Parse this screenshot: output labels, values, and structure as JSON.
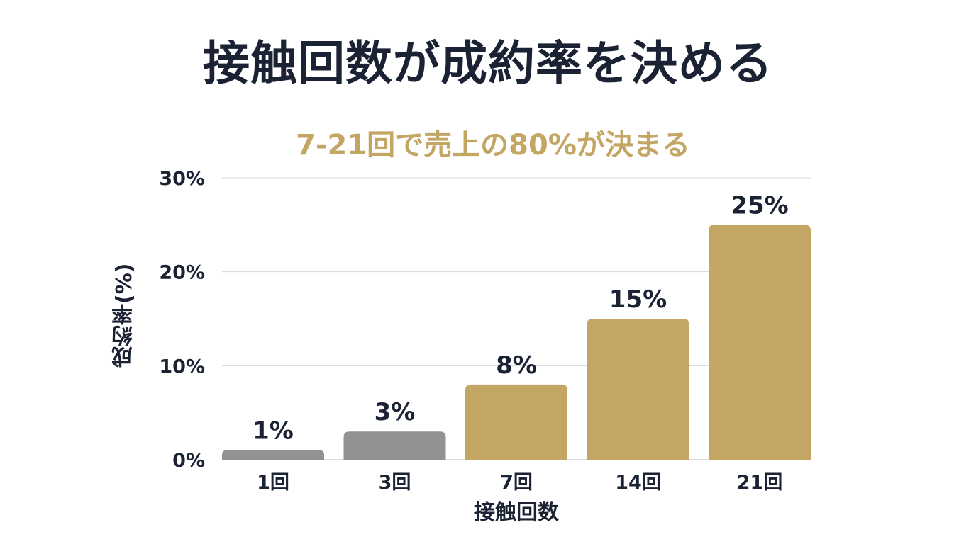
{
  "title": "接触回数が成約率を決める",
  "subtitle": "7-21回で売上の80%が決まる",
  "colors": {
    "highlight": "#c4a664",
    "muted": "#929292",
    "text": "#1a2233",
    "grid": "#d4d7dc"
  },
  "chart_data": {
    "type": "bar",
    "categories": [
      "1回",
      "3回",
      "7回",
      "14回",
      "21回"
    ],
    "values": [
      1,
      3,
      8,
      15,
      25
    ],
    "data_labels": [
      "1%",
      "3%",
      "8%",
      "15%",
      "25%"
    ],
    "bar_colors": [
      "#929292",
      "#929292",
      "#c4a664",
      "#c4a664",
      "#c4a664"
    ],
    "xlabel": "接触回数",
    "ylabel": "成約率(%)",
    "ylim": [
      0,
      30
    ],
    "yticks": [
      0,
      10,
      20,
      30
    ],
    "ytick_labels": [
      "0%",
      "10%",
      "20%",
      "30%"
    ],
    "grid": true,
    "legend": "none"
  }
}
